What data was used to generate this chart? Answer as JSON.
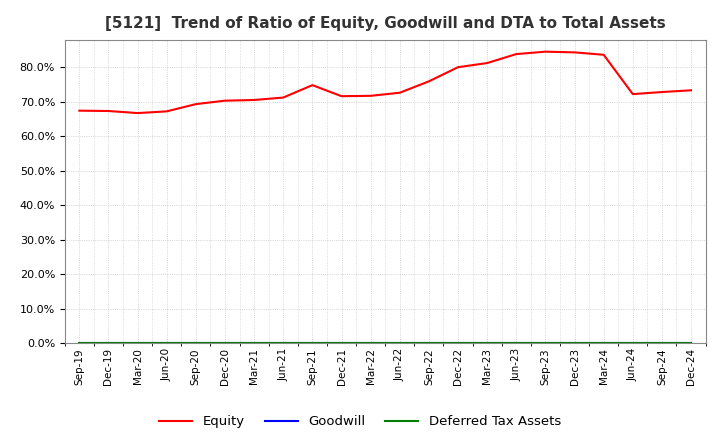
{
  "title": "[5121]  Trend of Ratio of Equity, Goodwill and DTA to Total Assets",
  "x_labels": [
    "Sep-19",
    "Dec-19",
    "Mar-20",
    "Jun-20",
    "Sep-20",
    "Dec-20",
    "Mar-21",
    "Jun-21",
    "Sep-21",
    "Dec-21",
    "Mar-22",
    "Jun-22",
    "Sep-22",
    "Dec-22",
    "Mar-23",
    "Jun-23",
    "Sep-23",
    "Dec-23",
    "Mar-24",
    "Jun-24",
    "Sep-24",
    "Dec-24"
  ],
  "equity": [
    0.674,
    0.673,
    0.667,
    0.672,
    0.693,
    0.703,
    0.705,
    0.712,
    0.748,
    0.716,
    0.717,
    0.726,
    0.759,
    0.8,
    0.812,
    0.838,
    0.845,
    0.843,
    0.836,
    0.722,
    0.728,
    0.733
  ],
  "goodwill": [
    0.0,
    0.0,
    0.0,
    0.0,
    0.0,
    0.0,
    0.0,
    0.0,
    0.0,
    0.0,
    0.0,
    0.0,
    0.0,
    0.0,
    0.0,
    0.0,
    0.0,
    0.0,
    0.0,
    0.0,
    0.0,
    0.0
  ],
  "dta": [
    0.0,
    0.0,
    0.0,
    0.0,
    0.0,
    0.0,
    0.0,
    0.0,
    0.0,
    0.0,
    0.0,
    0.0,
    0.0,
    0.0,
    0.0,
    0.0,
    0.0,
    0.0,
    0.0,
    0.0,
    0.0,
    0.0
  ],
  "equity_color": "#ff0000",
  "goodwill_color": "#0000ff",
  "dta_color": "#008000",
  "ylim": [
    0.0,
    0.88
  ],
  "yticks": [
    0.0,
    0.1,
    0.2,
    0.3,
    0.4,
    0.5,
    0.6,
    0.7,
    0.8
  ],
  "background_color": "#ffffff",
  "plot_bg_color": "#ffffff",
  "grid_color": "#bbbbbb",
  "title_fontsize": 11,
  "legend_labels": [
    "Equity",
    "Goodwill",
    "Deferred Tax Assets"
  ]
}
